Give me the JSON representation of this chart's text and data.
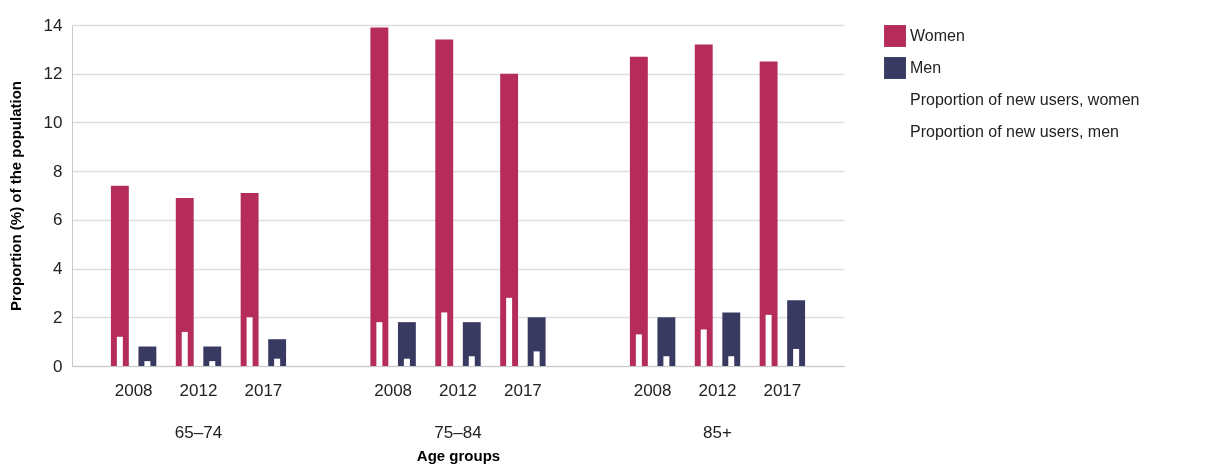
{
  "chart_data": {
    "type": "bar",
    "xlabel": "Age groups",
    "ylabel": "Proportion (%) of the population",
    "categories": [
      "2008",
      "2012",
      "2017",
      "2008",
      "2012",
      "2017",
      "2008",
      "2012",
      "2017"
    ],
    "annotations": [
      "65–74",
      "75–84",
      "85+"
    ],
    "ylim": [
      0,
      14
    ],
    "yticks": [
      0,
      2,
      4,
      6,
      8,
      10,
      12,
      14
    ],
    "grid": "y",
    "legend": "top right",
    "series": [
      {
        "name": "Women",
        "color": "#b52b5a",
        "values": [
          7.4,
          6.9,
          7.1,
          13.9,
          13.4,
          12.0,
          12.7,
          13.2,
          12.5
        ]
      },
      {
        "name": "Men",
        "color": "#393a62",
        "values": [
          0.8,
          0.8,
          1.1,
          1.8,
          1.8,
          2.0,
          2.0,
          2.2,
          2.7
        ]
      },
      {
        "name": "Proportion of new users, women",
        "color": "#ffffff",
        "values": [
          1.2,
          1.4,
          2.0,
          1.8,
          2.2,
          2.8,
          1.3,
          1.5,
          2.1
        ]
      },
      {
        "name": "Proportion of new users, men",
        "color": "#ffffff",
        "values": [
          0.2,
          0.2,
          0.3,
          0.3,
          0.4,
          0.6,
          0.4,
          0.4,
          0.7
        ]
      }
    ]
  }
}
